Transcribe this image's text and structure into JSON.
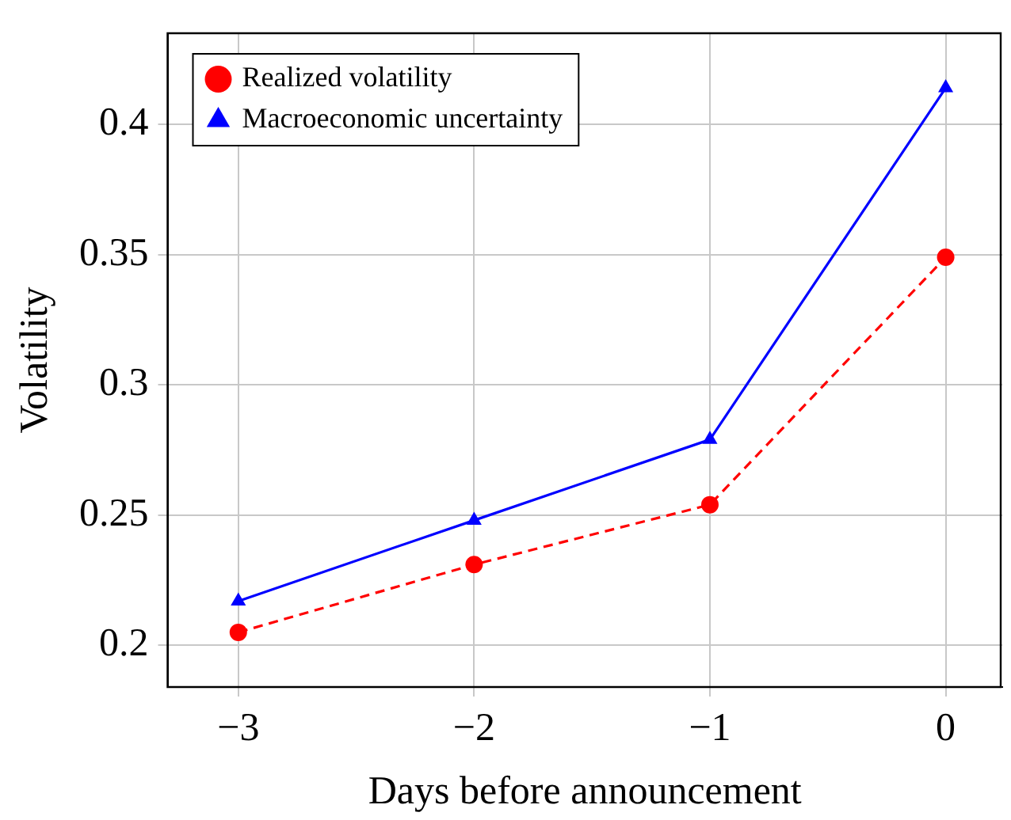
{
  "chart_data": {
    "type": "line",
    "xlabel": "Days before announcement",
    "ylabel": "Volatility",
    "x": [
      -3,
      -2,
      -1,
      0
    ],
    "xlim": [
      -3.3,
      0.24
    ],
    "xticks": [
      {
        "value": -3,
        "label": "−3"
      },
      {
        "value": -2,
        "label": "−2"
      },
      {
        "value": -1,
        "label": "−1"
      },
      0
    ],
    "ylim": [
      0.184,
      0.435
    ],
    "yticks": [
      0.2,
      0.25,
      0.3,
      0.35,
      0.4
    ],
    "grid": true,
    "legend": "top left",
    "series": [
      {
        "name": "Realized volatility",
        "color": "#ff0000",
        "values": [
          0.205,
          0.231,
          0.254,
          0.349
        ],
        "marker": "circle",
        "line_style": "dashed"
      },
      {
        "name": "Macroeconomic uncertainty",
        "color": "#0000ff",
        "values": [
          0.217,
          0.248,
          0.279,
          0.414
        ],
        "marker": "triangle",
        "line_style": "solid"
      }
    ]
  }
}
